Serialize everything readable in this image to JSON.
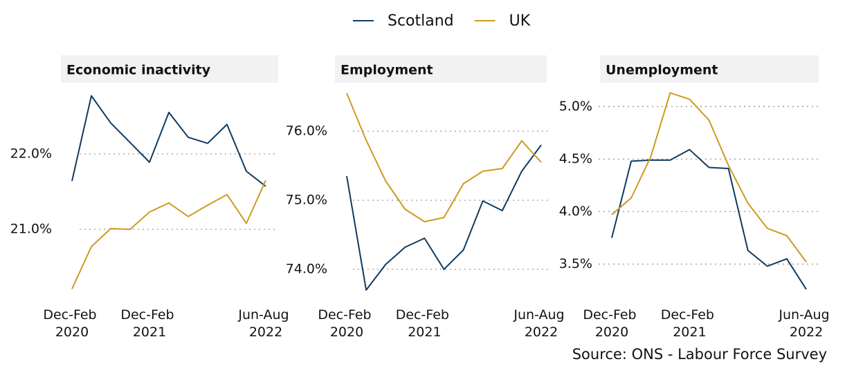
{
  "chart_data": [
    {
      "type": "line",
      "title": "Economic inactivity",
      "categories": [
        "Dec-Feb 2020",
        null,
        null,
        null,
        "Dec-Feb 2021",
        null,
        null,
        null,
        null,
        null,
        "Jun-Aug 2022"
      ],
      "series": [
        {
          "name": "Scotland",
          "color": "#0f3a5f",
          "values": [
            21.64,
            22.77,
            22.41,
            22.15,
            21.89,
            22.55,
            22.22,
            22.14,
            22.39,
            21.77,
            21.57
          ]
        },
        {
          "name": "UK",
          "color": "#cc9a1f",
          "values": [
            20.21,
            20.77,
            21.01,
            21.0,
            21.23,
            21.35,
            21.17,
            21.32,
            21.46,
            21.08,
            21.65
          ]
        }
      ],
      "ylim": [
        20.15,
        22.85
      ],
      "yticks": [
        {
          "value": 21,
          "label": "21.0%"
        },
        {
          "value": 22,
          "label": "22.0%"
        }
      ],
      "grid": true
    },
    {
      "type": "line",
      "title": "Employment",
      "categories": [
        "Dec-Feb 2020",
        null,
        null,
        null,
        "Dec-Feb 2021",
        null,
        null,
        null,
        null,
        null,
        "Jun-Aug 2022"
      ],
      "series": [
        {
          "name": "Scotland",
          "color": "#0f3a5f",
          "values": [
            75.35,
            73.7,
            74.07,
            74.32,
            74.45,
            74.0,
            74.28,
            74.99,
            74.85,
            75.42,
            75.8
          ]
        },
        {
          "name": "UK",
          "color": "#cc9a1f",
          "values": [
            76.55,
            75.87,
            75.28,
            74.87,
            74.69,
            74.75,
            75.24,
            75.42,
            75.46,
            75.86,
            75.55
          ]
        }
      ],
      "ylim": [
        73.65,
        76.6
      ],
      "yticks": [
        {
          "value": 74,
          "label": "74.0%"
        },
        {
          "value": 75,
          "label": "75.0%"
        },
        {
          "value": 76,
          "label": "76.0%"
        }
      ],
      "grid": true
    },
    {
      "type": "line",
      "title": "Unemployment",
      "categories": [
        "Dec-Feb 2020",
        null,
        null,
        null,
        "Dec-Feb 2021",
        null,
        null,
        null,
        null,
        null,
        "Jun-Aug 2022"
      ],
      "series": [
        {
          "name": "Scotland",
          "color": "#0f3a5f",
          "values": [
            3.75,
            4.48,
            4.49,
            4.49,
            4.59,
            4.42,
            4.41,
            3.63,
            3.48,
            3.55,
            3.26
          ]
        },
        {
          "name": "UK",
          "color": "#cc9a1f",
          "values": [
            3.97,
            4.13,
            4.52,
            5.13,
            5.07,
            4.87,
            4.44,
            4.08,
            3.84,
            3.77,
            3.52
          ]
        }
      ],
      "ylim": [
        3.22,
        5.16
      ],
      "yticks": [
        {
          "value": 3.5,
          "label": "3.5%"
        },
        {
          "value": 4,
          "label": "4.0%"
        },
        {
          "value": 4.5,
          "label": "4.5%"
        },
        {
          "value": 5,
          "label": "5.0%"
        }
      ],
      "grid": true
    }
  ],
  "source": "Source: ONS - Labour Force Survey"
}
